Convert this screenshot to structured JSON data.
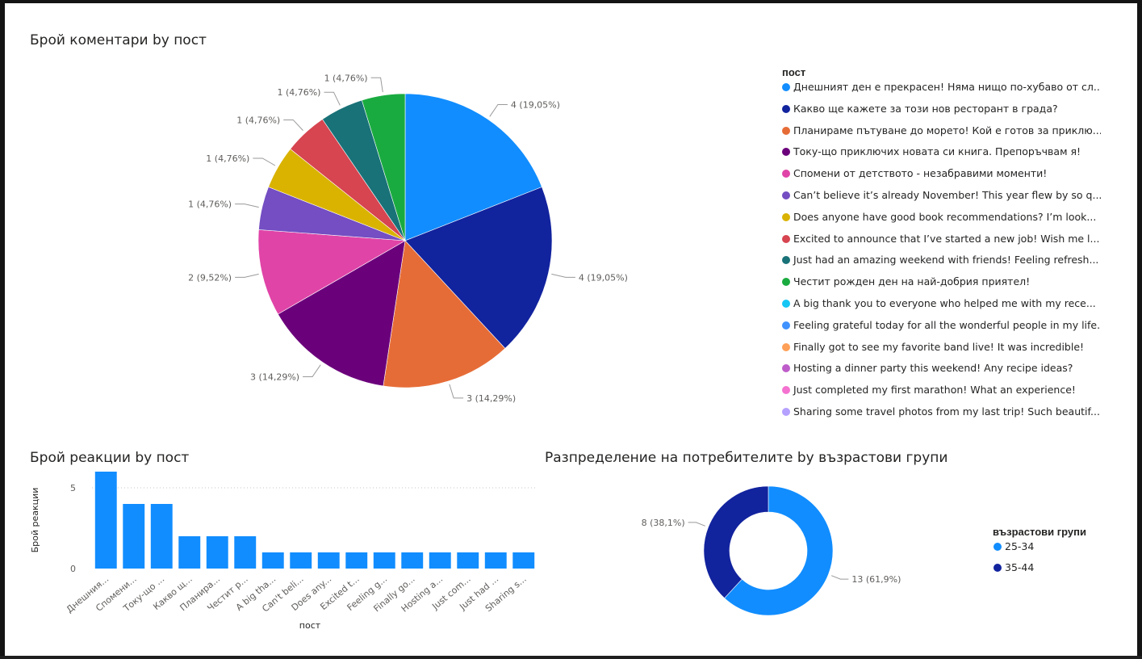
{
  "charts": {
    "pie": {
      "title": "Брой коментари by пост",
      "legend_title": "пост"
    },
    "bar": {
      "title": "Брой реакции by пост",
      "ylabel": "Брой реакции",
      "xlabel": "пост"
    },
    "donut": {
      "title": "Разпределение на потребителите by възрастови групи",
      "legend_title": "възрастови групи"
    }
  },
  "chart_data": [
    {
      "type": "pie",
      "title": "Брой коментари by пост",
      "legend_title": "пост",
      "legend_placement": "right",
      "legend": [
        {
          "label": "Днешният ден е прекрасен! Няма нищо по-хубаво от сл...",
          "color": "#118DFF"
        },
        {
          "label": "Какво ще кажете за този нов ресторант в града?",
          "color": "#12239E"
        },
        {
          "label": "Планираме пътуване до морето! Кой е готов за приклю...",
          "color": "#E66C37"
        },
        {
          "label": "Току-що приключих новата си книга. Препоръчвам я!",
          "color": "#6B007B"
        },
        {
          "label": "Спомени от детството - незабравими моменти!",
          "color": "#E044A7"
        },
        {
          "label": "Can’t believe it’s already November! This year flew by so q...",
          "color": "#744EC2"
        },
        {
          "label": "Does anyone have good book recommendations? I’m look...",
          "color": "#D9B300"
        },
        {
          "label": "Excited to announce that I’ve started a new job! Wish me l...",
          "color": "#D64550"
        },
        {
          "label": "Just had an amazing weekend with friends! Feeling refresh...",
          "color": "#197278"
        },
        {
          "label": "Честит рожден ден на най-добрия приятел!",
          "color": "#1AAB40"
        },
        {
          "label": "A big thank you to everyone who helped me with my rece...",
          "color": "#15C6F4"
        },
        {
          "label": "Feeling grateful today for all the wonderful people in my life.",
          "color": "#4092FF"
        },
        {
          "label": "Finally got to see my favorite band live! It was incredible!",
          "color": "#FFA058"
        },
        {
          "label": "Hosting a dinner party this weekend! Any recipe ideas?",
          "color": "#BE5DC9"
        },
        {
          "label": "Just completed my first marathon! What an experience!",
          "color": "#F472D0"
        },
        {
          "label": "Sharing some travel photos from my last trip! Such beautif...",
          "color": "#B5A1FF"
        }
      ],
      "slices": [
        {
          "value": 4,
          "label": "4 (19,05%)",
          "color": "#118DFF"
        },
        {
          "value": 4,
          "label": "4 (19,05%)",
          "color": "#12239E"
        },
        {
          "value": 3,
          "label": "3 (14,29%)",
          "color": "#E66C37"
        },
        {
          "value": 3,
          "label": "3 (14,29%)",
          "color": "#6B007B"
        },
        {
          "value": 2,
          "label": "2 (9,52%)",
          "color": "#E044A7"
        },
        {
          "value": 1,
          "label": "1 (4,76%)",
          "color": "#744EC2"
        },
        {
          "value": 1,
          "label": "1 (4,76%)",
          "color": "#D9B300"
        },
        {
          "value": 1,
          "label": "1 (4,76%)",
          "color": "#D64550"
        },
        {
          "value": 1,
          "label": "1 (4,76%)",
          "color": "#197278"
        },
        {
          "value": 1,
          "label": "1 (4,76%)",
          "color": "#1AAB40"
        }
      ]
    },
    {
      "type": "bar",
      "title": "Брой реакции by пост",
      "xlabel": "пост",
      "ylabel": "Брой реакции",
      "ylim": [
        0,
        6
      ],
      "yticks": [
        0,
        5
      ],
      "grid": true,
      "color": "#118DFF",
      "categories": [
        "Днешния...",
        "Спомени...",
        "Току-що ...",
        "Какво щ...",
        "Планира...",
        "Честит р...",
        "A big tha...",
        "Can't beli...",
        "Does any...",
        "Excited t...",
        "Feeling g...",
        "Finally go...",
        "Hosting a...",
        "Just com...",
        "Just had ...",
        "Sharing s..."
      ],
      "values": [
        6,
        4,
        4,
        2,
        2,
        2,
        1,
        1,
        1,
        1,
        1,
        1,
        1,
        1,
        1,
        1
      ]
    },
    {
      "type": "pie",
      "subtype": "donut",
      "title": "Разпределение на потребителите by възрастови групи",
      "legend_title": "възрастови групи",
      "legend_placement": "right",
      "legend": [
        {
          "label": "25-34",
          "color": "#118DFF"
        },
        {
          "label": "35-44",
          "color": "#12239E"
        }
      ],
      "slices": [
        {
          "category": "25-34",
          "value": 13,
          "label": "13 (61,9%)",
          "color": "#118DFF"
        },
        {
          "category": "35-44",
          "value": 8,
          "label": "8 (38,1%)",
          "color": "#12239E"
        }
      ]
    }
  ]
}
